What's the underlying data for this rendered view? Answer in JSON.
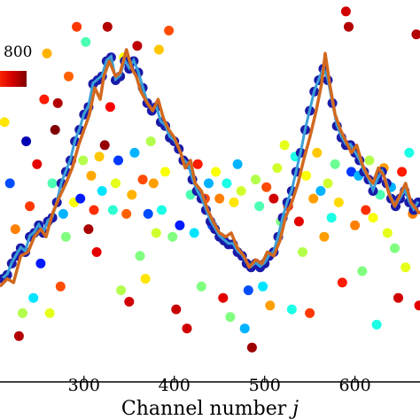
{
  "chart_data": {
    "type": "scatter",
    "title": "",
    "xlabel": "Channel number",
    "xlabel_symbol": "j",
    "ylabel": "",
    "x_ticks": [
      "300",
      "400",
      "500",
      "600"
    ],
    "xlim": [
      207,
      672
    ],
    "ylim": [
      0,
      1
    ],
    "grid": false,
    "colorbar": {
      "visible_label": "800",
      "colormap": "jet"
    },
    "colors": {
      "line": "#d2691e",
      "line_fit": "#3aa0d8",
      "blue_dots": "#1a1aa8",
      "axis": "#000000"
    },
    "series": [
      {
        "values": [
          [
            210,
            0.27
          ],
          [
            215,
            0.28
          ],
          [
            220,
            0.31
          ],
          [
            225,
            0.33
          ],
          [
            230,
            0.35
          ],
          [
            235,
            0.34
          ],
          [
            240,
            0.38
          ],
          [
            245,
            0.39
          ],
          [
            250,
            0.41
          ],
          [
            255,
            0.39
          ],
          [
            260,
            0.42
          ],
          [
            265,
            0.43
          ],
          [
            270,
            0.47
          ],
          [
            275,
            0.52
          ],
          [
            280,
            0.55
          ],
          [
            285,
            0.58
          ],
          [
            290,
            0.63
          ],
          [
            295,
            0.66
          ],
          [
            300,
            0.7
          ],
          [
            305,
            0.72
          ],
          [
            310,
            0.78
          ],
          [
            315,
            0.79
          ],
          [
            320,
            0.8
          ],
          [
            325,
            0.84
          ],
          [
            330,
            0.85
          ],
          [
            335,
            0.79
          ],
          [
            340,
            0.8
          ],
          [
            345,
            0.84
          ],
          [
            350,
            0.82
          ],
          [
            355,
            0.84
          ],
          [
            360,
            0.81
          ],
          [
            365,
            0.77
          ],
          [
            370,
            0.73
          ],
          [
            375,
            0.71
          ],
          [
            380,
            0.72
          ],
          [
            385,
            0.68
          ],
          [
            390,
            0.67
          ],
          [
            395,
            0.64
          ],
          [
            400,
            0.63
          ],
          [
            405,
            0.61
          ],
          [
            410,
            0.58
          ],
          [
            415,
            0.57
          ],
          [
            420,
            0.53
          ],
          [
            425,
            0.5
          ],
          [
            430,
            0.48
          ],
          [
            435,
            0.45
          ],
          [
            440,
            0.42
          ],
          [
            445,
            0.4
          ],
          [
            450,
            0.38
          ],
          [
            455,
            0.37
          ],
          [
            460,
            0.36
          ],
          [
            465,
            0.36
          ],
          [
            470,
            0.34
          ],
          [
            475,
            0.33
          ],
          [
            480,
            0.31
          ],
          [
            485,
            0.3
          ],
          [
            490,
            0.31
          ],
          [
            495,
            0.3
          ],
          [
            500,
            0.31
          ],
          [
            505,
            0.33
          ],
          [
            510,
            0.34
          ],
          [
            515,
            0.38
          ],
          [
            520,
            0.43
          ],
          [
            525,
            0.47
          ],
          [
            530,
            0.5
          ],
          [
            535,
            0.55
          ],
          [
            540,
            0.6
          ],
          [
            545,
            0.66
          ],
          [
            550,
            0.71
          ],
          [
            555,
            0.76
          ],
          [
            560,
            0.79
          ],
          [
            565,
            0.82
          ],
          [
            570,
            0.79
          ],
          [
            575,
            0.73
          ],
          [
            580,
            0.67
          ],
          [
            585,
            0.64
          ],
          [
            590,
            0.62
          ],
          [
            595,
            0.62
          ],
          [
            600,
            0.6
          ],
          [
            605,
            0.58
          ],
          [
            610,
            0.55
          ],
          [
            615,
            0.53
          ],
          [
            620,
            0.5
          ],
          [
            625,
            0.53
          ],
          [
            630,
            0.55
          ],
          [
            635,
            0.52
          ],
          [
            640,
            0.48
          ],
          [
            645,
            0.46
          ],
          [
            650,
            0.48
          ],
          [
            655,
            0.5
          ],
          [
            660,
            0.47
          ],
          [
            665,
            0.45
          ],
          [
            670,
            0.47
          ]
        ]
      }
    ],
    "line": [
      [
        207,
        0.25
      ],
      [
        215,
        0.27
      ],
      [
        222,
        0.26
      ],
      [
        230,
        0.33
      ],
      [
        238,
        0.34
      ],
      [
        245,
        0.38
      ],
      [
        252,
        0.4
      ],
      [
        258,
        0.38
      ],
      [
        265,
        0.44
      ],
      [
        272,
        0.48
      ],
      [
        280,
        0.52
      ],
      [
        287,
        0.56
      ],
      [
        294,
        0.62
      ],
      [
        300,
        0.66
      ],
      [
        306,
        0.7
      ],
      [
        312,
        0.77
      ],
      [
        318,
        0.74
      ],
      [
        322,
        0.8
      ],
      [
        328,
        0.84
      ],
      [
        335,
        0.8
      ],
      [
        340,
        0.81
      ],
      [
        347,
        0.87
      ],
      [
        353,
        0.82
      ],
      [
        358,
        0.8
      ],
      [
        363,
        0.76
      ],
      [
        370,
        0.73
      ],
      [
        376,
        0.71
      ],
      [
        382,
        0.74
      ],
      [
        388,
        0.69
      ],
      [
        394,
        0.66
      ],
      [
        400,
        0.64
      ],
      [
        407,
        0.6
      ],
      [
        412,
        0.56
      ],
      [
        418,
        0.58
      ],
      [
        423,
        0.52
      ],
      [
        430,
        0.5
      ],
      [
        437,
        0.45
      ],
      [
        443,
        0.42
      ],
      [
        450,
        0.39
      ],
      [
        457,
        0.38
      ],
      [
        463,
        0.39
      ],
      [
        470,
        0.35
      ],
      [
        477,
        0.33
      ],
      [
        483,
        0.3
      ],
      [
        490,
        0.32
      ],
      [
        497,
        0.31
      ],
      [
        503,
        0.34
      ],
      [
        510,
        0.33
      ],
      [
        517,
        0.37
      ],
      [
        523,
        0.43
      ],
      [
        530,
        0.47
      ],
      [
        537,
        0.52
      ],
      [
        543,
        0.58
      ],
      [
        550,
        0.64
      ],
      [
        557,
        0.71
      ],
      [
        563,
        0.78
      ],
      [
        567,
        0.86
      ],
      [
        572,
        0.78
      ],
      [
        578,
        0.7
      ],
      [
        584,
        0.66
      ],
      [
        590,
        0.63
      ],
      [
        596,
        0.6
      ],
      [
        602,
        0.62
      ],
      [
        608,
        0.57
      ],
      [
        614,
        0.54
      ],
      [
        620,
        0.52
      ],
      [
        626,
        0.56
      ],
      [
        632,
        0.54
      ],
      [
        638,
        0.49
      ],
      [
        644,
        0.46
      ],
      [
        650,
        0.49
      ],
      [
        656,
        0.52
      ],
      [
        662,
        0.47
      ],
      [
        672,
        0.44
      ]
    ],
    "scattered_points": [
      [
        212,
        0.68,
        0.65
      ],
      [
        218,
        0.52,
        0.2
      ],
      [
        224,
        0.4,
        0.75
      ],
      [
        228,
        0.12,
        0.95
      ],
      [
        232,
        0.18,
        0.55
      ],
      [
        236,
        0.63,
        0.05
      ],
      [
        240,
        0.46,
        0.82
      ],
      [
        244,
        0.22,
        0.35
      ],
      [
        248,
        0.57,
        0.9
      ],
      [
        252,
        0.31,
        0.15
      ],
      [
        256,
        0.74,
        0.85
      ],
      [
        259,
        0.86,
        0.7
      ],
      [
        262,
        0.18,
        0.6
      ],
      [
        265,
        0.52,
        0.45
      ],
      [
        268,
        0.66,
        1.0
      ],
      [
        271,
        0.73,
        0.95
      ],
      [
        274,
        0.25,
        0.8
      ],
      [
        277,
        0.44,
        0.3
      ],
      [
        280,
        0.38,
        0.5
      ],
      [
        283,
        0.8,
        0.78
      ],
      [
        286,
        0.58,
        0.92
      ],
      [
        289,
        0.47,
        0.62
      ],
      [
        292,
        0.93,
        0.82
      ],
      [
        296,
        0.48,
        0.15
      ],
      [
        299,
        0.58,
        0.55
      ],
      [
        302,
        0.89,
        0.45
      ],
      [
        305,
        0.4,
        0.96
      ],
      [
        308,
        0.54,
        0.71
      ],
      [
        311,
        0.45,
        0.83
      ],
      [
        314,
        0.34,
        0.9
      ],
      [
        317,
        0.59,
        0.68
      ],
      [
        320,
        0.5,
        0.35
      ],
      [
        323,
        0.62,
        0.98
      ],
      [
        326,
        0.93,
        0.95
      ],
      [
        329,
        0.72,
        0.88
      ],
      [
        332,
        0.45,
        0.42
      ],
      [
        335,
        0.52,
        0.6
      ],
      [
        338,
        0.58,
        0.18
      ],
      [
        341,
        0.24,
        0.55
      ],
      [
        344,
        0.85,
        0.62
      ],
      [
        347,
        0.44,
        0.78
      ],
      [
        350,
        0.21,
        0.92
      ],
      [
        353,
        0.49,
        0.7
      ],
      [
        356,
        0.6,
        0.3
      ],
      [
        359,
        0.88,
        0.94
      ],
      [
        362,
        0.33,
        0.5
      ],
      [
        365,
        0.53,
        0.8
      ],
      [
        368,
        0.27,
        0.65
      ],
      [
        371,
        0.44,
        0.2
      ],
      [
        374,
        0.63,
        0.55
      ],
      [
        377,
        0.52,
        0.72
      ],
      [
        380,
        0.39,
        0.58
      ],
      [
        383,
        0.87,
        0.68
      ],
      [
        386,
        0.45,
        0.4
      ],
      [
        390,
        0.55,
        0.62
      ],
      [
        394,
        0.92,
        0.8
      ],
      [
        398,
        0.38,
        0.5
      ],
      [
        402,
        0.19,
        0.93
      ],
      [
        406,
        0.41,
        0.15
      ],
      [
        410,
        0.58,
        0.7
      ],
      [
        414,
        0.14,
        0.92
      ],
      [
        418,
        0.49,
        0.45
      ],
      [
        422,
        0.39,
        0.35
      ],
      [
        426,
        0.57,
        0.85
      ],
      [
        430,
        0.25,
        0.5
      ],
      [
        434,
        0.48,
        0.8
      ],
      [
        438,
        0.52,
        0.3
      ],
      [
        442,
        0.41,
        0.2
      ],
      [
        446,
        0.55,
        0.62
      ],
      [
        450,
        0.48,
        0.75
      ],
      [
        454,
        0.22,
        0.9
      ],
      [
        458,
        0.52,
        0.4
      ],
      [
        462,
        0.17,
        0.5
      ],
      [
        466,
        0.47,
        0.65
      ],
      [
        470,
        0.57,
        0.3
      ],
      [
        474,
        0.5,
        0.58
      ],
      [
        478,
        0.14,
        0.3
      ],
      [
        482,
        0.24,
        0.2
      ],
      [
        486,
        0.09,
        0.97
      ],
      [
        490,
        0.53,
        0.55
      ],
      [
        494,
        0.46,
        0.45
      ],
      [
        498,
        0.25,
        0.35
      ],
      [
        502,
        0.51,
        0.8
      ],
      [
        506,
        0.2,
        0.72
      ],
      [
        510,
        0.48,
        0.92
      ],
      [
        514,
        0.56,
        0.58
      ],
      [
        518,
        0.42,
        0.5
      ],
      [
        522,
        0.62,
        0.6
      ],
      [
        526,
        0.46,
        0.85
      ],
      [
        530,
        0.19,
        0.4
      ],
      [
        534,
        0.59,
        0.4
      ],
      [
        538,
        0.42,
        0.9
      ],
      [
        542,
        0.34,
        0.55
      ],
      [
        546,
        0.54,
        0.62
      ],
      [
        550,
        0.18,
        0.82
      ],
      [
        554,
        0.48,
        0.72
      ],
      [
        558,
        0.6,
        0.68
      ],
      [
        562,
        0.5,
        0.3
      ],
      [
        566,
        0.38,
        0.72
      ],
      [
        570,
        0.52,
        0.58
      ],
      [
        574,
        0.43,
        0.4
      ],
      [
        578,
        0.57,
        0.48
      ],
      [
        582,
        0.47,
        0.66
      ],
      [
        586,
        0.26,
        0.85
      ],
      [
        590,
        0.97,
        0.92
      ],
      [
        593,
        0.93,
        0.95
      ],
      [
        596,
        0.55,
        0.18
      ],
      [
        600,
        0.41,
        0.75
      ],
      [
        604,
        0.54,
        0.3
      ],
      [
        608,
        0.29,
        0.5
      ],
      [
        612,
        0.45,
        0.83
      ],
      [
        616,
        0.58,
        0.55
      ],
      [
        620,
        0.43,
        0.62
      ],
      [
        624,
        0.15,
        0.4
      ],
      [
        628,
        0.49,
        0.45
      ],
      [
        632,
        0.56,
        0.72
      ],
      [
        636,
        0.39,
        0.6
      ],
      [
        640,
        0.51,
        0.3
      ],
      [
        644,
        0.35,
        0.5
      ],
      [
        648,
        0.22,
        0.92
      ],
      [
        652,
        0.55,
        0.85
      ],
      [
        656,
        0.3,
        0.6
      ],
      [
        660,
        0.6,
        0.4
      ],
      [
        664,
        0.44,
        0.75
      ],
      [
        668,
        0.91,
        0.95
      ],
      [
        671,
        0.2,
        0.9
      ]
    ]
  }
}
